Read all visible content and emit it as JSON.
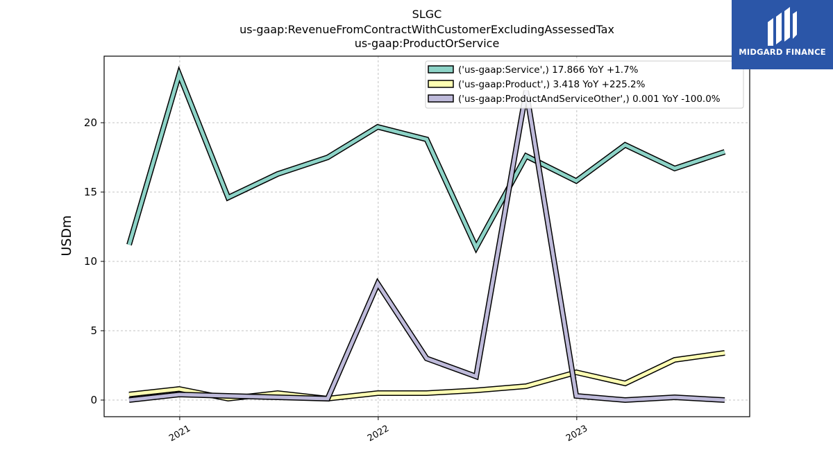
{
  "logo": {
    "text": "MIDGARD FINANCE",
    "background": "#2b56a8"
  },
  "chart_data": {
    "type": "line",
    "title_lines": [
      "SLGC",
      "us-gaap:RevenueFromContractWithCustomerExcludingAssessedTax",
      "us-gaap:ProductOrService"
    ],
    "xlabel": "",
    "ylabel": "USDm",
    "x": [
      "2020-09-30",
      "2020-12-31",
      "2021-03-31",
      "2021-06-30",
      "2021-09-30",
      "2021-12-31",
      "2022-03-31",
      "2022-06-30",
      "2022-09-30",
      "2022-12-31",
      "2023-03-31",
      "2023-06-30",
      "2023-09-30"
    ],
    "x_ticks": [
      "2021",
      "2022",
      "2023"
    ],
    "y_ticks": [
      "0",
      "5",
      "10",
      "15",
      "20"
    ],
    "ylim": [
      -1.2,
      24.8
    ],
    "grid": true,
    "legend_placement": "top-right",
    "series": [
      {
        "name": "('us-gaap:Service',) 17.866 YoY +1.7%",
        "color": "#8dd3c7",
        "values": [
          11.2,
          23.5,
          14.6,
          16.3,
          17.5,
          19.7,
          18.8,
          11.0,
          17.6,
          15.8,
          18.4,
          16.7,
          17.9
        ]
      },
      {
        "name": "('us-gaap:Product',) 3.418 YoY +225.2%",
        "color": "#ffffb3",
        "values": [
          0.4,
          0.8,
          0.1,
          0.5,
          0.1,
          0.5,
          0.5,
          0.7,
          1.0,
          2.0,
          1.2,
          2.9,
          3.4
        ]
      },
      {
        "name": "('us-gaap:ProductAndServiceOther',) 0.001 YoY -100.0%",
        "color": "#bebada",
        "values": [
          0.0,
          0.4,
          0.3,
          0.2,
          0.1,
          8.4,
          3.0,
          1.7,
          22.3,
          0.3,
          0.0,
          0.2,
          0.0
        ]
      }
    ]
  }
}
